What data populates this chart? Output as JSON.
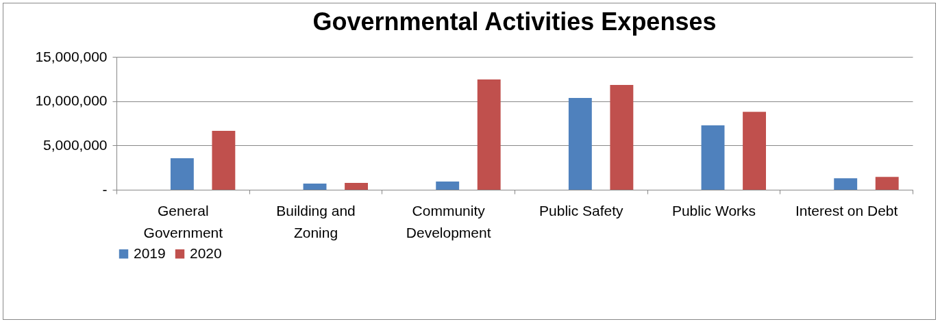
{
  "chart_data": {
    "type": "bar",
    "title": "Governmental Activities Expenses",
    "categories": [
      "General Government",
      "Building and Zoning",
      "Community Development",
      "Public Safety",
      "Public Works",
      "Interest on Debt"
    ],
    "series": [
      {
        "name": "2019",
        "color": "#4f81bd",
        "values": [
          3560000,
          700000,
          930000,
          10360000,
          7270000,
          1300000
        ]
      },
      {
        "name": "2020",
        "color": "#c0504d",
        "values": [
          6650000,
          770000,
          12450000,
          11830000,
          8800000,
          1450000
        ]
      }
    ],
    "ylim": [
      0,
      15000000
    ],
    "yticks": [
      {
        "value": 0,
        "label": "-"
      },
      {
        "value": 5000000,
        "label": "5,000,000"
      },
      {
        "value": 10000000,
        "label": "10,000,000"
      },
      {
        "value": 15000000,
        "label": "15,000,000"
      }
    ],
    "grid": "y",
    "legend": "bottom"
  }
}
